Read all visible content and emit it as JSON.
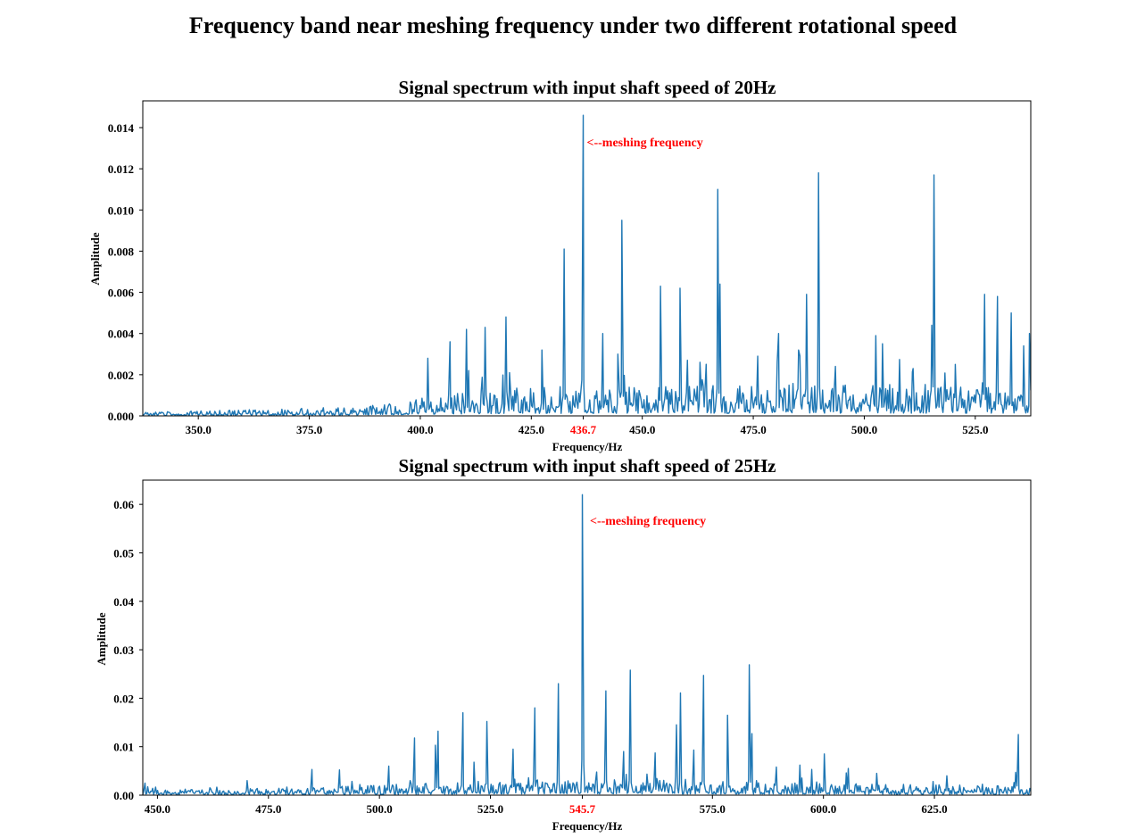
{
  "figure": {
    "title": "Frequency band near meshing frequency under two different rotational speed"
  },
  "colors": {
    "line": "#1f77b4",
    "highlight": "#ff0000",
    "axis": "#000000"
  },
  "chart_data": [
    {
      "type": "line",
      "title": "Signal spectrum with input shaft speed of 20Hz",
      "xlabel": "Frequency/Hz",
      "ylabel": "Amplitude",
      "xlim": [
        337.5,
        537.5
      ],
      "ylim": [
        0,
        0.0153
      ],
      "xticks": [
        "350.0",
        "375.0",
        "400.0",
        "425.0",
        "436.7",
        "450.0",
        "475.0",
        "500.0",
        "525.0"
      ],
      "highlight_tick": "436.7",
      "yticks": [
        "0.000",
        "0.002",
        "0.004",
        "0.006",
        "0.008",
        "0.010",
        "0.012",
        "0.014"
      ],
      "annotation": {
        "text": "<--meshing frequency",
        "x": 437.5,
        "y": 0.0133
      },
      "seed": 20,
      "noise_profile": [
        [
          337.5,
          0.0001
        ],
        [
          385,
          0.00025
        ],
        [
          400,
          0.0005
        ],
        [
          420,
          0.0008
        ],
        [
          537.5,
          0.0009
        ]
      ],
      "peaks": [
        {
          "x": 401.7,
          "y": 0.0028
        },
        {
          "x": 406.7,
          "y": 0.0036
        },
        {
          "x": 410.4,
          "y": 0.0042
        },
        {
          "x": 410.9,
          "y": 0.0022
        },
        {
          "x": 414.6,
          "y": 0.0043
        },
        {
          "x": 419.3,
          "y": 0.0048
        },
        {
          "x": 420.1,
          "y": 0.0021
        },
        {
          "x": 427.4,
          "y": 0.0032
        },
        {
          "x": 432.4,
          "y": 0.0081
        },
        {
          "x": 436.7,
          "y": 0.0146
        },
        {
          "x": 441.1,
          "y": 0.004
        },
        {
          "x": 444.5,
          "y": 0.003
        },
        {
          "x": 445.4,
          "y": 0.0095
        },
        {
          "x": 454.1,
          "y": 0.0063
        },
        {
          "x": 458.5,
          "y": 0.0062
        },
        {
          "x": 463.0,
          "y": 0.0026
        },
        {
          "x": 467.0,
          "y": 0.011
        },
        {
          "x": 467.5,
          "y": 0.0064
        },
        {
          "x": 476.0,
          "y": 0.0029
        },
        {
          "x": 480.7,
          "y": 0.004
        },
        {
          "x": 485.2,
          "y": 0.0032
        },
        {
          "x": 487.0,
          "y": 0.0059
        },
        {
          "x": 489.7,
          "y": 0.0118
        },
        {
          "x": 493.5,
          "y": 0.0024
        },
        {
          "x": 502.6,
          "y": 0.0039
        },
        {
          "x": 504.1,
          "y": 0.0035
        },
        {
          "x": 511.0,
          "y": 0.0023
        },
        {
          "x": 515.2,
          "y": 0.0044
        },
        {
          "x": 515.7,
          "y": 0.0117
        },
        {
          "x": 520.5,
          "y": 0.0025
        },
        {
          "x": 527.1,
          "y": 0.0059
        },
        {
          "x": 530.0,
          "y": 0.0058
        },
        {
          "x": 533.1,
          "y": 0.005
        },
        {
          "x": 535.9,
          "y": 0.0034
        },
        {
          "x": 537.2,
          "y": 0.004
        }
      ]
    },
    {
      "type": "line",
      "title": "Signal spectrum with input shaft speed of 25Hz",
      "xlabel": "Frequency/Hz",
      "ylabel": "Amplitude",
      "xlim": [
        446.7,
        646.7
      ],
      "ylim": [
        0,
        0.065
      ],
      "xticks": [
        "450.0",
        "475.0",
        "500.0",
        "525.0",
        "545.7",
        "575.0",
        "600.0",
        "625.0"
      ],
      "highlight_tick": "545.7",
      "yticks": [
        "0.00",
        "0.01",
        "0.02",
        "0.03",
        "0.04",
        "0.05",
        "0.06"
      ],
      "annotation": {
        "text": "<--meshing frequency",
        "x": 547.4,
        "y": 0.0567
      },
      "seed": 25,
      "noise_profile": [
        [
          446.7,
          0.0006
        ],
        [
          500,
          0.0012
        ],
        [
          530,
          0.0018
        ],
        [
          560,
          0.0018
        ],
        [
          646.7,
          0.0011
        ]
      ],
      "peaks": [
        {
          "x": 447.2,
          "y": 0.0025
        },
        {
          "x": 470.2,
          "y": 0.003
        },
        {
          "x": 484.8,
          "y": 0.0053
        },
        {
          "x": 491.0,
          "y": 0.0052
        },
        {
          "x": 502.1,
          "y": 0.006
        },
        {
          "x": 507.9,
          "y": 0.0118
        },
        {
          "x": 513.2,
          "y": 0.0132
        },
        {
          "x": 512.6,
          "y": 0.0103
        },
        {
          "x": 518.8,
          "y": 0.017
        },
        {
          "x": 521.3,
          "y": 0.0068
        },
        {
          "x": 524.2,
          "y": 0.0152
        },
        {
          "x": 530.1,
          "y": 0.0095
        },
        {
          "x": 535.0,
          "y": 0.018
        },
        {
          "x": 540.3,
          "y": 0.023
        },
        {
          "x": 545.7,
          "y": 0.062
        },
        {
          "x": 551.0,
          "y": 0.0215
        },
        {
          "x": 555.0,
          "y": 0.009
        },
        {
          "x": 556.5,
          "y": 0.0258
        },
        {
          "x": 562.1,
          "y": 0.0087
        },
        {
          "x": 566.9,
          "y": 0.0145
        },
        {
          "x": 567.8,
          "y": 0.0211
        },
        {
          "x": 570.8,
          "y": 0.0093
        },
        {
          "x": 573.0,
          "y": 0.0247
        },
        {
          "x": 578.4,
          "y": 0.0165
        },
        {
          "x": 583.3,
          "y": 0.0269
        },
        {
          "x": 583.9,
          "y": 0.0127
        },
        {
          "x": 589.4,
          "y": 0.0058
        },
        {
          "x": 594.7,
          "y": 0.0062
        },
        {
          "x": 600.2,
          "y": 0.0085
        },
        {
          "x": 605.6,
          "y": 0.0055
        },
        {
          "x": 612.0,
          "y": 0.0045
        },
        {
          "x": 627.8,
          "y": 0.004
        },
        {
          "x": 643.3,
          "y": 0.0047
        },
        {
          "x": 643.9,
          "y": 0.0125
        }
      ]
    }
  ]
}
